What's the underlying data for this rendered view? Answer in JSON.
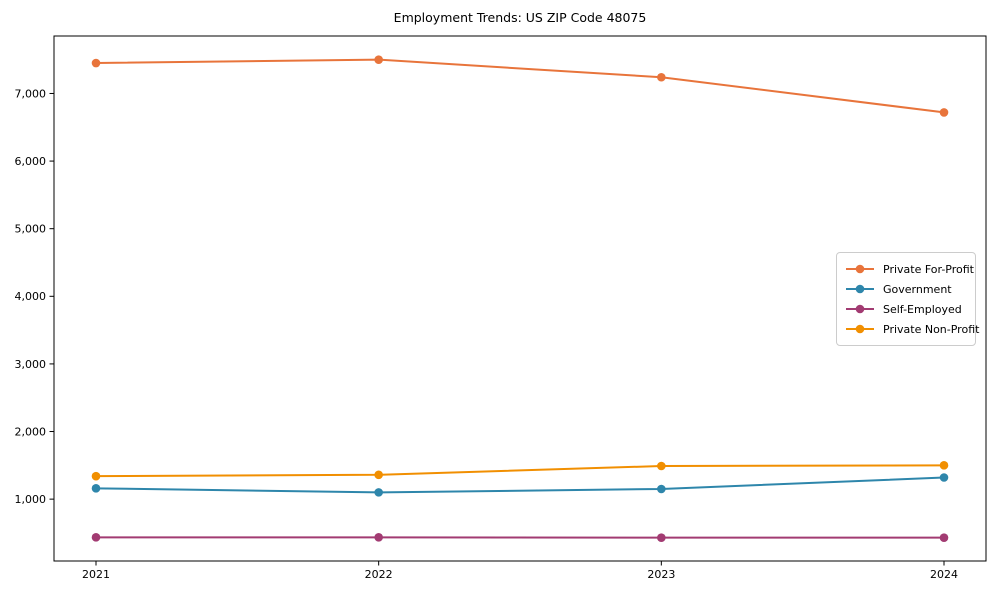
{
  "title": "Employment Trends: US ZIP Code 48075",
  "chart_data": {
    "type": "line",
    "title": "Employment Trends: US ZIP Code 48075",
    "x": [
      2021,
      2022,
      2023,
      2024
    ],
    "x_tick_labels": [
      "2021",
      "2022",
      "2023",
      "2024"
    ],
    "series": [
      {
        "name": "Private For-Profit",
        "color": "#E8743B",
        "values": [
          7450,
          7500,
          7240,
          6720
        ]
      },
      {
        "name": "Government",
        "color": "#2E86AB",
        "values": [
          1160,
          1100,
          1150,
          1320
        ]
      },
      {
        "name": "Self-Employed",
        "color": "#A23B72",
        "values": [
          435,
          435,
          430,
          430
        ]
      },
      {
        "name": "Private Non-Profit",
        "color": "#F18F01",
        "values": [
          1340,
          1360,
          1490,
          1500
        ]
      }
    ],
    "xlabel": "",
    "ylabel": "",
    "ylim": [
      85,
      7850
    ],
    "yticks": [
      1000,
      2000,
      3000,
      4000,
      5000,
      6000,
      7000
    ],
    "ytick_labels": [
      "1,000",
      "2,000",
      "3,000",
      "4,000",
      "5,000",
      "6,000",
      "7,000"
    ],
    "grid": false,
    "legend_position": "center-right",
    "marker": "circle"
  }
}
